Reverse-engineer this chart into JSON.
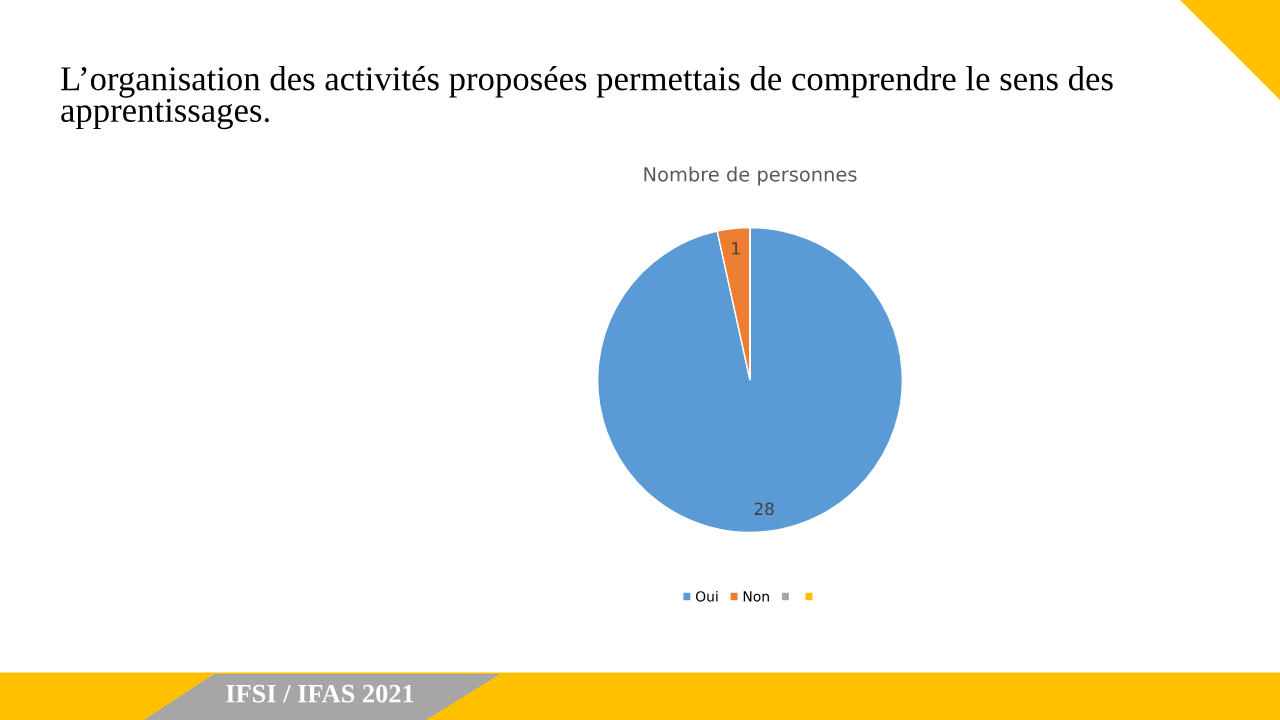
{
  "chart_data": {
    "type": "pie",
    "title": "L’organisation des activités proposées permettais de comprendre le sens des apprentissages.",
    "subtitle": "Nombre de personnes",
    "categories": [
      "Oui",
      "Non",
      null,
      null
    ],
    "values": [
      28,
      1,
      0,
      0
    ],
    "colors": [
      "#5b9bd5",
      "#ed7d31",
      "#a5a5a5",
      "#ffc000"
    ],
    "value_labels": [
      "28",
      "1",
      null,
      null
    ],
    "legend": "bottom",
    "annotations": [
      "IFSI / IFAS 2021"
    ]
  }
}
